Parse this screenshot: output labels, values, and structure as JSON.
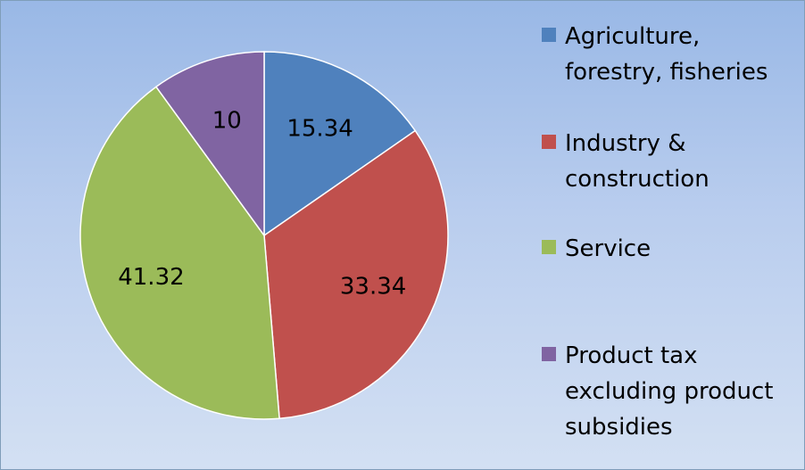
{
  "chart_data": {
    "type": "pie",
    "title": "",
    "categories": [
      "Agriculture, forestry, fisheries",
      "Industry & construction",
      "Service",
      "Product tax excluding product subsidies"
    ],
    "values": [
      15.34,
      33.34,
      41.32,
      10
    ],
    "data_labels": [
      "15.34",
      "33.34",
      "41.32",
      "10"
    ],
    "colors": [
      "#4f81bd",
      "#c0504d",
      "#9bbb59",
      "#8064a2"
    ],
    "start_angle": "12 o'clock",
    "direction": "clockwise",
    "legend_position": "right"
  },
  "legend": {
    "items": [
      {
        "label": "Agriculture, forestry, fisheries",
        "color": "#4f81bd"
      },
      {
        "label": "Industry & construction",
        "color": "#c0504d"
      },
      {
        "label": "Service",
        "color": "#9bbb59"
      },
      {
        "label": "Product tax excluding product subsidies",
        "color": "#8064a2"
      }
    ]
  }
}
